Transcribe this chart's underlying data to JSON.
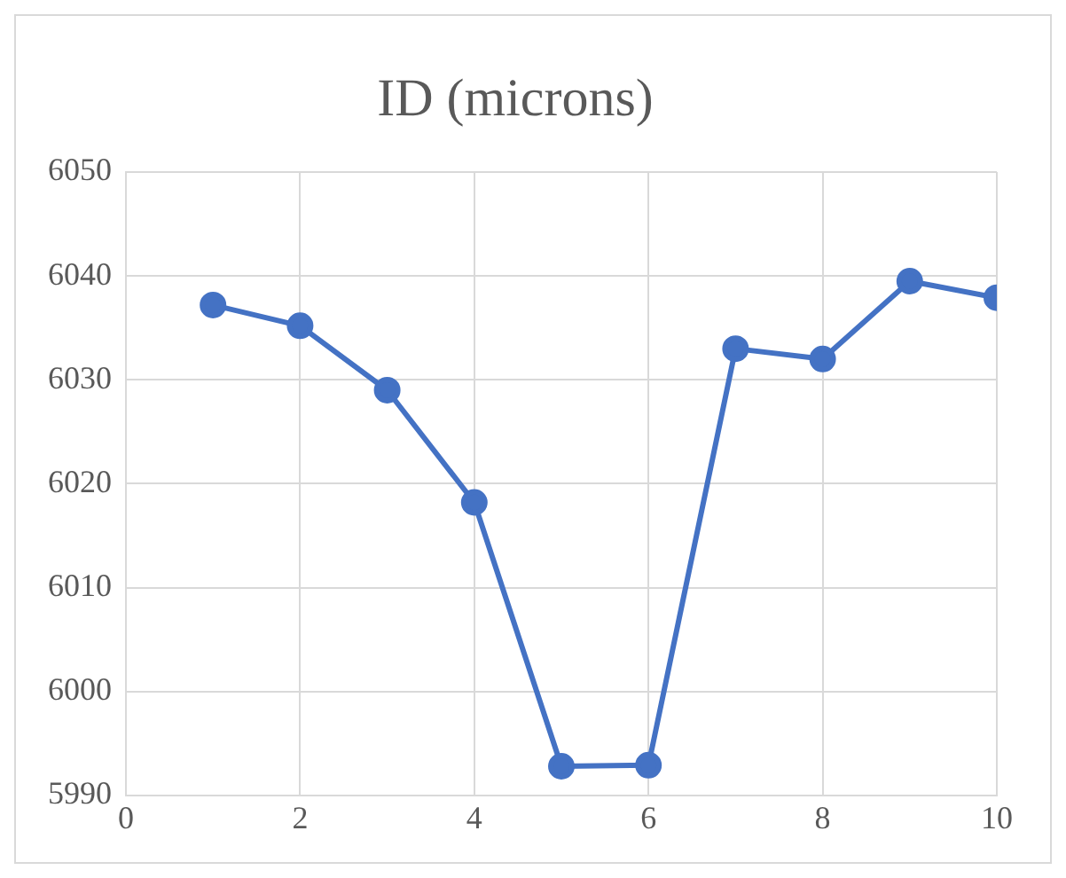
{
  "chart_data": {
    "type": "line",
    "title": "ID (microns)",
    "x": [
      1,
      2,
      3,
      4,
      5,
      6,
      7,
      8,
      9,
      10
    ],
    "series": [
      {
        "color": "#4472c4",
        "values": [
          6037.2,
          6035.2,
          6029,
          6018.2,
          5992.8,
          5992.9,
          6033,
          6032,
          6039.5,
          6037.9
        ]
      }
    ],
    "xlim": [
      0,
      10
    ],
    "xticks": [
      0,
      2,
      4,
      6,
      8,
      10
    ],
    "ylim": [
      5990,
      6050
    ],
    "yticks": [
      5990,
      6000,
      6010,
      6020,
      6030,
      6040,
      6050
    ],
    "grid": true,
    "legend": false,
    "marker": "circle",
    "line_style": "solid"
  }
}
